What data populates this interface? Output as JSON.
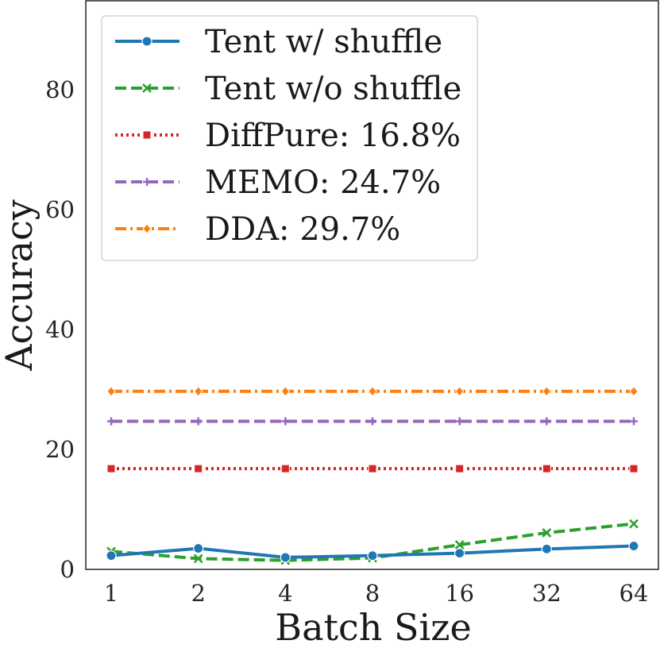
{
  "chart_data": {
    "type": "line",
    "xlabel": "Batch Size",
    "ylabel": "Accuracy",
    "categories": [
      "1",
      "2",
      "4",
      "8",
      "16",
      "32",
      "64"
    ],
    "ylim": [
      0,
      95
    ],
    "yticks": [
      0,
      20,
      40,
      60,
      80
    ],
    "grid": false,
    "legend_position": "top-left",
    "series": [
      {
        "name": "Tent w/ shuffle",
        "values": [
          2.3,
          3.5,
          2.0,
          2.3,
          2.7,
          3.4,
          3.9
        ],
        "color": "#1f77b4",
        "style": "solid",
        "marker": "circle"
      },
      {
        "name": "Tent w/o shuffle",
        "values": [
          3.0,
          1.8,
          1.5,
          1.9,
          4.1,
          6.1,
          7.6
        ],
        "color": "#2ca02c",
        "style": "dashed",
        "marker": "x"
      },
      {
        "name": "DiffPure: 16.8%",
        "values": [
          16.8,
          16.8,
          16.8,
          16.8,
          16.8,
          16.8,
          16.8
        ],
        "color": "#d62728",
        "style": "dotted",
        "marker": "square"
      },
      {
        "name": "MEMO: 24.7%",
        "values": [
          24.7,
          24.7,
          24.7,
          24.7,
          24.7,
          24.7,
          24.7
        ],
        "color": "#9467bd",
        "style": "dashed",
        "marker": "plus"
      },
      {
        "name": "DDA: 29.7%",
        "values": [
          29.7,
          29.7,
          29.7,
          29.7,
          29.7,
          29.7,
          29.7
        ],
        "color": "#ff7f0e",
        "style": "dashdot",
        "marker": "diamond"
      }
    ]
  }
}
